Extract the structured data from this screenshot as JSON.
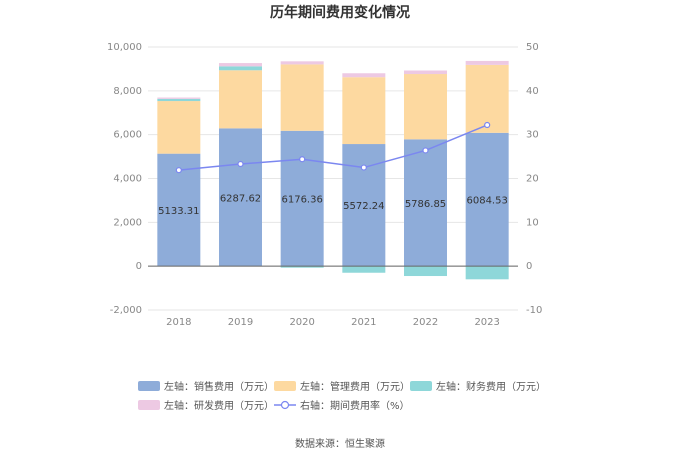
{
  "chart_data": {
    "type": "bar",
    "title": "历年期间费用变化情况",
    "categories": [
      "2018",
      "2019",
      "2020",
      "2021",
      "2022",
      "2023"
    ],
    "series": [
      {
        "name": "左轴：销售费用（万元）",
        "axis": "left",
        "color": "#8eacd9",
        "values": [
          5133.31,
          6287.62,
          6176.36,
          5572.24,
          5786.85,
          6084.53
        ],
        "labels": [
          "5133.31",
          "6287.62",
          "6176.36",
          "5572.24",
          "5786.85",
          "6084.53"
        ]
      },
      {
        "name": "左轴：管理费用（万元）",
        "axis": "left",
        "color": "#fdd9a0",
        "values": [
          2400,
          2650,
          3030,
          3050,
          2980,
          3100
        ]
      },
      {
        "name": "左轴：财务费用（万元）",
        "axis": "left",
        "color": "#8ed7d9",
        "values": [
          100,
          180,
          -70,
          -300,
          -450,
          -600
        ]
      },
      {
        "name": "左轴：研发费用（万元）",
        "axis": "left",
        "color": "#edc9e3",
        "values": [
          60,
          150,
          140,
          180,
          160,
          180
        ]
      },
      {
        "name": "右轴：期间费用率（%）",
        "axis": "right",
        "type": "line",
        "color": "#7b87f0",
        "values": [
          21.9,
          23.3,
          24.4,
          22.5,
          26.4,
          32.2
        ]
      }
    ],
    "yleft": {
      "ticks": [
        "10,000",
        "8,000",
        "6,000",
        "4,000",
        "2,000",
        "0",
        "-2,000"
      ],
      "ylim": [
        -2000,
        10000
      ]
    },
    "yright": {
      "ticks": [
        "50",
        "40",
        "30",
        "20",
        "10",
        "0",
        "-10"
      ],
      "ylim": [
        -10,
        50
      ]
    },
    "grid": true,
    "legend": "bottom"
  },
  "source": "数据来源：恒生聚源"
}
